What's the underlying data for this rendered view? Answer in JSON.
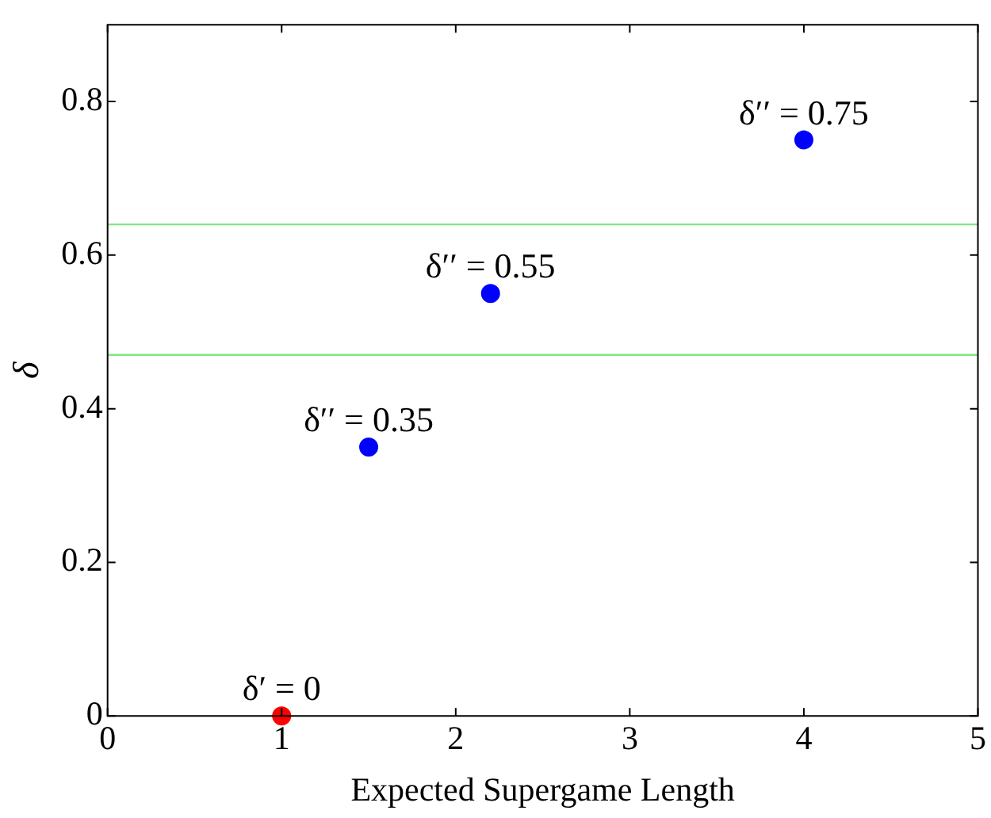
{
  "chart_data": {
    "type": "scatter",
    "xlabel": "Expected Supergame Length",
    "ylabel": "δ",
    "xlim": [
      0,
      5
    ],
    "xticks": [
      0,
      1,
      2,
      3,
      4,
      5
    ],
    "ylim": [
      0,
      0.9
    ],
    "yticks": [
      0,
      0.2,
      0.4,
      0.6,
      0.8
    ],
    "grid": false,
    "legend": false,
    "marker": "circle",
    "series": [
      {
        "color": "#ff0000",
        "x": [
          1
        ],
        "values": [
          0
        ]
      },
      {
        "color": "#0000ff",
        "x": [
          1.5,
          2.2,
          4
        ],
        "values": [
          0.35,
          0.55,
          0.75
        ]
      }
    ],
    "ref_lines": [
      {
        "axis": "y",
        "value": 0.64,
        "color": "#80e680"
      },
      {
        "axis": "y",
        "value": 0.47,
        "color": "#80e680"
      }
    ],
    "annotations": [
      {
        "text": "δ′ = 0",
        "x": 1,
        "y": 0
      },
      {
        "text": "δ′′ = 0.35",
        "x": 1.5,
        "y": 0.35
      },
      {
        "text": "δ′′ = 0.55",
        "x": 2.2,
        "y": 0.55
      },
      {
        "text": "δ′′ = 0.75",
        "x": 4,
        "y": 0.75
      }
    ]
  }
}
